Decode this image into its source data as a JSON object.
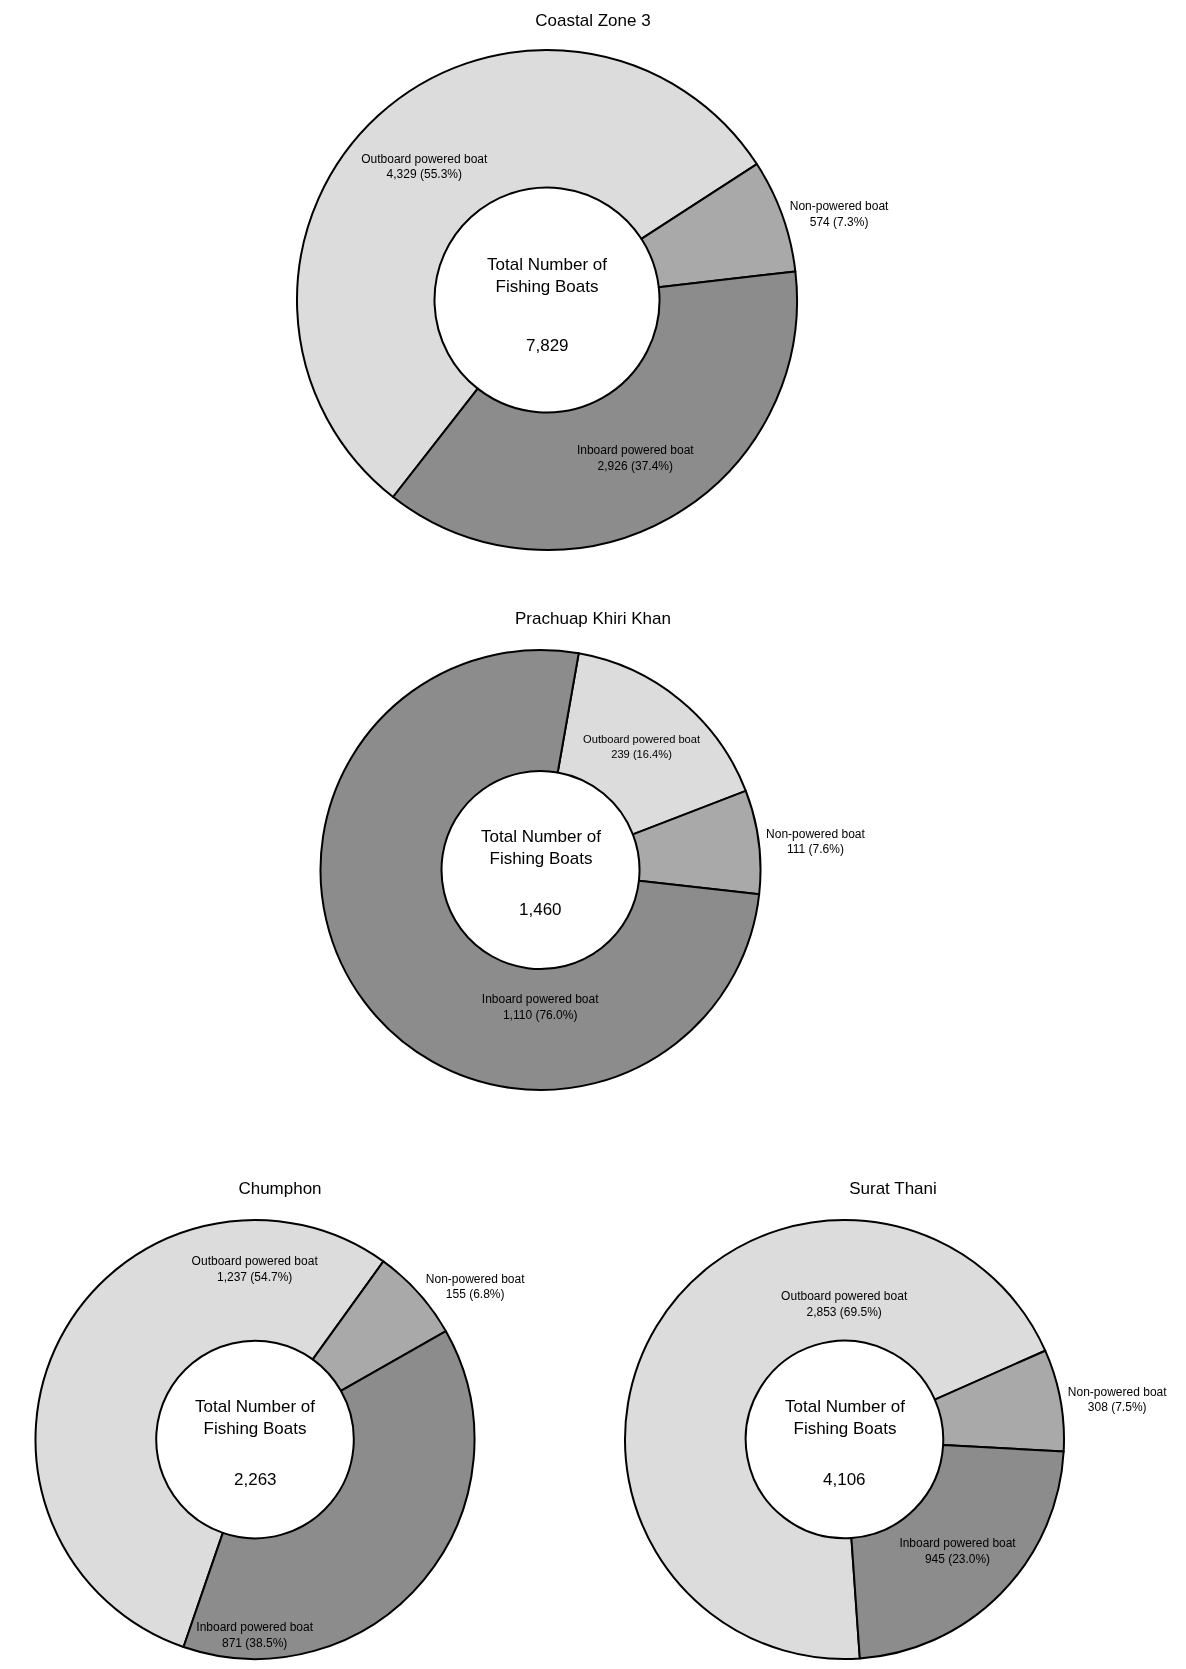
{
  "chart_data": [
    {
      "type": "donut",
      "title": "Coastal Zone 3",
      "categories": [
        "Outboard powered boat",
        "Non-powered boat",
        "Inboard powered boat"
      ],
      "values": [
        4329,
        574,
        2926
      ],
      "value_labels": [
        "4,329 (55.3%)",
        "574 (7.3%)",
        "2,926 (37.4%)"
      ],
      "colors": [
        "#dcdcdc",
        "#a9a9a9",
        "#8c8c8c"
      ],
      "annotations": [
        "Total Number of Fishing Boats",
        "7,829"
      ]
    },
    {
      "type": "donut",
      "title": "Prachuap Khiri Khan",
      "categories": [
        "Outboard powered boat",
        "Non-powered boat",
        "Inboard powered boat"
      ],
      "values": [
        239,
        111,
        1110
      ],
      "value_labels": [
        "239 (16.4%)",
        "111 (7.6%)",
        "1,110 (76.0%)"
      ],
      "colors": [
        "#dcdcdc",
        "#a9a9a9",
        "#8c8c8c"
      ],
      "annotations": [
        "Total Number of Fishing Boats",
        "1,460"
      ]
    },
    {
      "type": "donut",
      "title": "Chumphon",
      "categories": [
        "Outboard powered boat",
        "Non-powered boat",
        "Inboard powered boat"
      ],
      "values": [
        1237,
        155,
        871
      ],
      "value_labels": [
        "1,237 (54.7%)",
        "155 (6.8%)",
        "871 (38.5%)"
      ],
      "colors": [
        "#dcdcdc",
        "#a9a9a9",
        "#8c8c8c"
      ],
      "annotations": [
        "Total Number of Fishing Boats",
        "2,263"
      ]
    },
    {
      "type": "donut",
      "title": "Surat Thani",
      "categories": [
        "Outboard powered boat",
        "Non-powered boat",
        "Inboard powered boat"
      ],
      "values": [
        2853,
        308,
        945
      ],
      "value_labels": [
        "2,853 (69.5%)",
        "308 (7.5%)",
        "945 (23.0%)"
      ],
      "colors": [
        "#dcdcdc",
        "#a9a9a9",
        "#8c8c8c"
      ],
      "annotations": [
        "Total Number of Fishing Boats",
        "4,106"
      ]
    }
  ]
}
